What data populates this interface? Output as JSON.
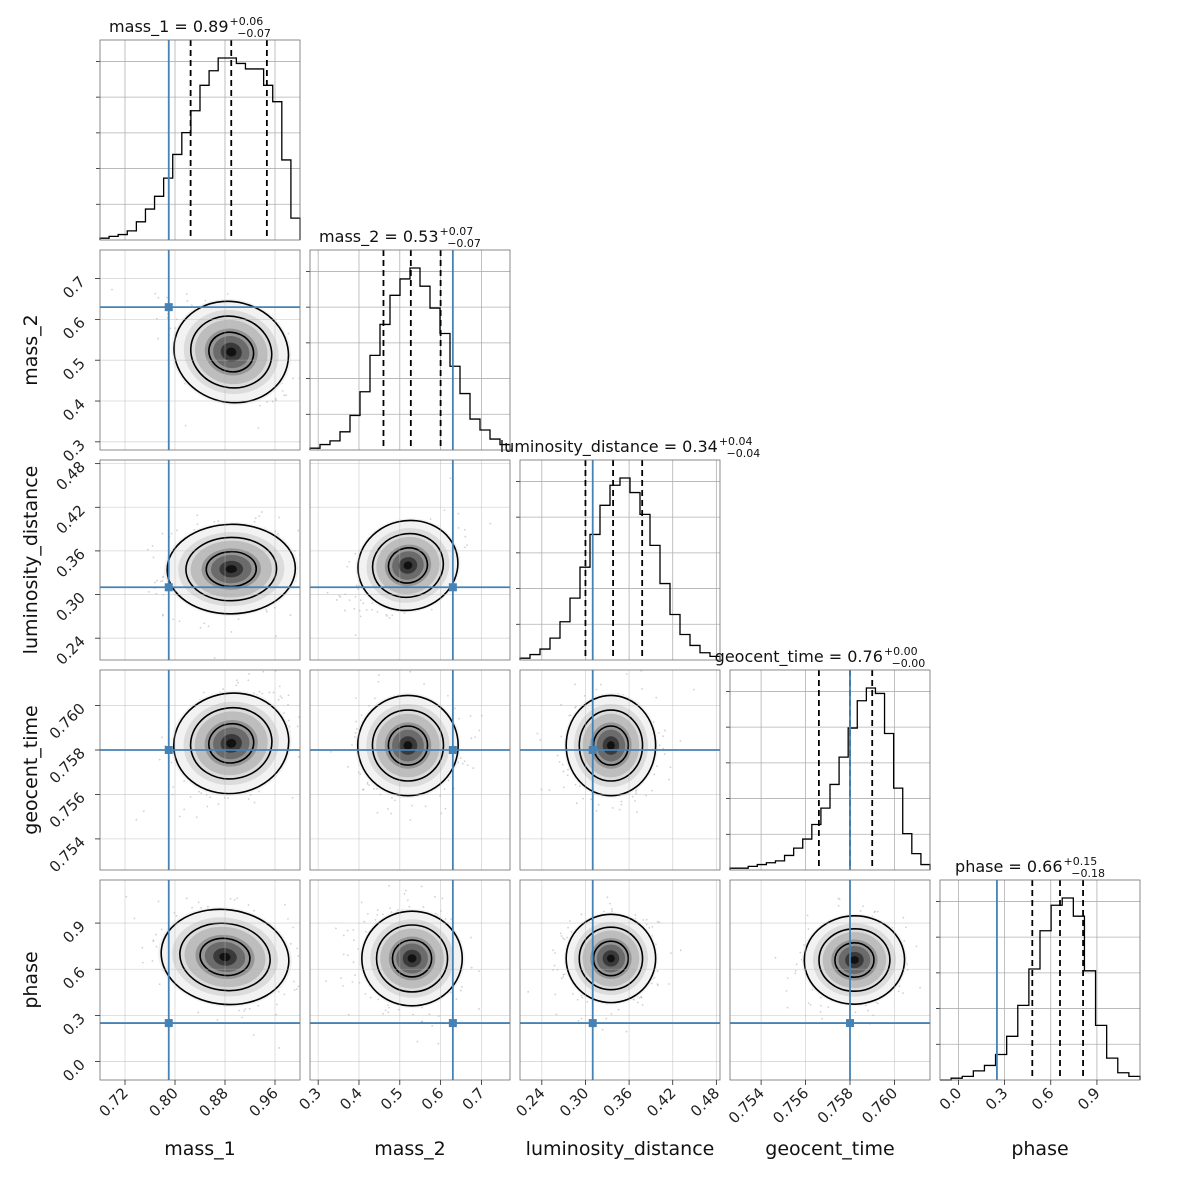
{
  "chart_data": {
    "type": "corner",
    "parameters": [
      {
        "name": "mass_1",
        "label": "mass_1",
        "range": [
          0.68,
          1.0
        ],
        "ticks": [
          "0.72",
          "0.80",
          "0.88",
          "0.96"
        ],
        "tick_values": [
          0.72,
          0.8,
          0.88,
          0.96
        ],
        "median": 0.89,
        "plus": 0.06,
        "minus": 0.07,
        "quantiles": [
          0.825,
          0.89,
          0.947
        ],
        "truth": 0.79,
        "title_main": "mass_1 = 0.89",
        "title_plus": "+0.06",
        "title_minus": "−0.07",
        "hist": [
          1,
          2,
          3,
          5,
          10,
          17,
          24,
          34,
          47,
          59,
          71,
          85,
          93,
          100,
          100,
          97,
          94,
          94,
          85,
          76,
          44,
          12
        ]
      },
      {
        "name": "mass_2",
        "label": "mass_2",
        "range": [
          0.28,
          0.77
        ],
        "ticks": [
          "0.3",
          "0.4",
          "0.5",
          "0.6",
          "0.7"
        ],
        "tick_values": [
          0.3,
          0.4,
          0.5,
          0.6,
          0.7
        ],
        "median": 0.53,
        "plus": 0.07,
        "minus": 0.07,
        "quantiles": [
          0.46,
          0.527,
          0.6
        ],
        "truth": 0.63,
        "title_main": "mass_2 = 0.53",
        "title_plus": "+0.07",
        "title_minus": "−0.07",
        "hist": [
          1,
          3,
          5,
          10,
          19,
          32,
          52,
          69,
          85,
          94,
          100,
          90,
          78,
          64,
          46,
          31,
          17,
          11,
          6,
          3
        ]
      },
      {
        "name": "luminosity_distance",
        "label": "luminosity_distance",
        "range": [
          0.21,
          0.485
        ],
        "ticks": [
          "0.24",
          "0.30",
          "0.36",
          "0.42",
          "0.48"
        ],
        "tick_values": [
          0.24,
          0.3,
          0.36,
          0.42,
          0.48
        ],
        "median": 0.34,
        "plus": 0.04,
        "minus": 0.04,
        "quantiles": [
          0.3,
          0.338,
          0.378
        ],
        "truth": 0.31,
        "title_main": "luminosity_distance = 0.34",
        "title_plus": "+0.04",
        "title_minus": "−0.04",
        "hist": [
          1,
          3,
          6,
          12,
          21,
          34,
          51,
          69,
          85,
          96,
          100,
          92,
          80,
          63,
          42,
          25,
          14,
          8,
          4,
          2
        ]
      },
      {
        "name": "geocent_time",
        "label": "geocent_time",
        "range": [
          0.7526,
          0.7616
        ],
        "ticks": [
          "0.754",
          "0.756",
          "0.758",
          "0.760"
        ],
        "tick_values": [
          0.754,
          0.756,
          0.758,
          0.76
        ],
        "median": 0.76,
        "plus": 0.0,
        "minus": 0.0,
        "quantiles": [
          0.7566,
          0.758,
          0.759
        ],
        "truth": 0.758,
        "title_main": "geocent_time = 0.76",
        "title_plus": "+0.00",
        "title_minus": "−0.00",
        "hist": [
          1,
          1,
          2,
          3,
          4,
          5,
          8,
          12,
          17,
          25,
          34,
          47,
          62,
          78,
          93,
          100,
          97,
          75,
          45,
          20,
          9,
          3
        ]
      },
      {
        "name": "phase",
        "label": "phase",
        "range": [
          -0.12,
          1.18
        ],
        "ticks": [
          "0.0",
          "0.3",
          "0.6",
          "0.9"
        ],
        "tick_values": [
          0.0,
          0.3,
          0.6,
          0.9
        ],
        "median": 0.66,
        "plus": 0.15,
        "minus": 0.18,
        "quantiles": [
          0.48,
          0.66,
          0.81
        ],
        "truth": 0.25,
        "title_main": "phase = 0.66",
        "title_plus": "+0.15",
        "title_minus": "−0.18",
        "hist": [
          0,
          1,
          2,
          5,
          8,
          14,
          24,
          41,
          61,
          82,
          96,
          100,
          90,
          60,
          30,
          12,
          4,
          2
        ]
      }
    ],
    "truth_color": "#4682b4",
    "quantile_style": "dashed",
    "contour_levels": 3,
    "grid": true,
    "pairs": [
      {
        "x": "mass_1",
        "y": "mass_2",
        "center": [
          0.89,
          0.52
        ],
        "sd": [
          0.045,
          0.06
        ],
        "rho": -0.5
      },
      {
        "x": "mass_1",
        "y": "luminosity_distance",
        "center": [
          0.89,
          0.335
        ],
        "sd": [
          0.05,
          0.03
        ],
        "rho": 0.05
      },
      {
        "x": "mass_2",
        "y": "luminosity_distance",
        "center": [
          0.52,
          0.34
        ],
        "sd": [
          0.06,
          0.03
        ],
        "rho": 0.45
      },
      {
        "x": "mass_1",
        "y": "geocent_time",
        "center": [
          0.89,
          0.7583
        ],
        "sd": [
          0.045,
          0.0011
        ],
        "rho": 0.3
      },
      {
        "x": "mass_2",
        "y": "geocent_time",
        "center": [
          0.52,
          0.7582
        ],
        "sd": [
          0.06,
          0.0011
        ],
        "rho": 0.0
      },
      {
        "x": "luminosity_distance",
        "y": "geocent_time",
        "center": [
          0.335,
          0.7582
        ],
        "sd": [
          0.03,
          0.0011
        ],
        "rho": 0.0
      },
      {
        "x": "mass_1",
        "y": "phase",
        "center": [
          0.88,
          0.68
        ],
        "sd": [
          0.05,
          0.15
        ],
        "rho": -0.3
      },
      {
        "x": "mass_2",
        "y": "phase",
        "center": [
          0.53,
          0.67
        ],
        "sd": [
          0.06,
          0.15
        ],
        "rho": 0.0
      },
      {
        "x": "luminosity_distance",
        "y": "phase",
        "center": [
          0.335,
          0.67
        ],
        "sd": [
          0.03,
          0.14
        ],
        "rho": 0.0
      },
      {
        "x": "geocent_time",
        "y": "phase",
        "center": [
          0.7582,
          0.66
        ],
        "sd": [
          0.0011,
          0.14
        ],
        "rho": 0.05
      }
    ]
  }
}
